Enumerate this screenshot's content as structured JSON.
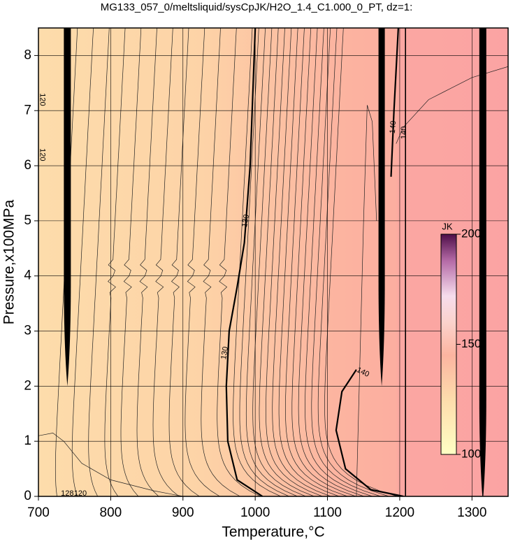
{
  "chart_data": {
    "type": "contour",
    "title": "MG133_057_0/meltsliquid/sysCpJK/H2O_1.4_C1.000_0_PT, dz=1:",
    "x_label": "Temperature,°C",
    "y_label": "Pressure,x100MPa",
    "xlim": [
      700,
      1350
    ],
    "ylim": [
      0,
      8.5
    ],
    "xticks": [
      700,
      800,
      900,
      1000,
      1100,
      1200,
      1300
    ],
    "yticks": [
      0,
      1,
      2,
      3,
      4,
      5,
      6,
      7,
      8
    ],
    "grid": true,
    "colorbar": {
      "label": "JK",
      "lim": [
        100,
        200
      ],
      "ticks": [
        100,
        150,
        200
      ]
    },
    "contour_labels": [
      130,
      130,
      140,
      140,
      140,
      120,
      120,
      128,
      120
    ]
  }
}
